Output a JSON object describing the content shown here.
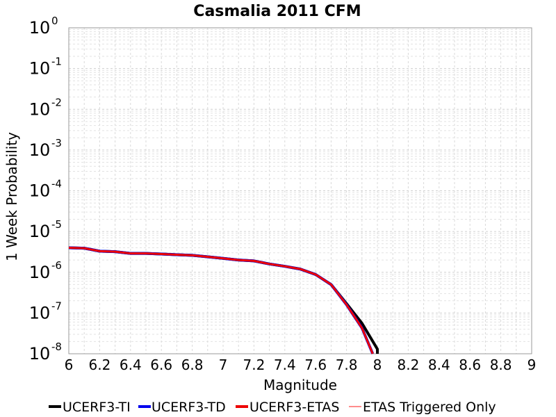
{
  "chart_data": {
    "type": "line",
    "title": "Casmalia 2011 CFM",
    "xlabel": "Magnitude",
    "ylabel": "1 Week Probability",
    "xlim": [
      6,
      9
    ],
    "ylim": [
      1e-08,
      1
    ],
    "yscale": "log",
    "grid": true,
    "legend_position": "bottom",
    "x_ticks": [
      "6",
      "6.2",
      "6.4",
      "6.6",
      "6.8",
      "7",
      "7.2",
      "7.4",
      "7.6",
      "7.8",
      "8",
      "8.2",
      "8.4",
      "8.6",
      "8.8",
      "9"
    ],
    "y_tick_base": "10",
    "y_tick_exponents": [
      "0",
      "-1",
      "-2",
      "-3",
      "-4",
      "-5",
      "-6",
      "-7",
      "-8"
    ],
    "series": [
      {
        "name": "UCERF3-TI",
        "color": "#000000",
        "x": [
          6.0,
          6.1,
          6.2,
          6.3,
          6.4,
          6.5,
          6.6,
          6.7,
          6.8,
          6.9,
          7.0,
          7.1,
          7.2,
          7.3,
          7.4,
          7.5,
          7.6,
          7.7,
          7.8,
          7.9,
          8.0,
          8.0
        ],
        "y": [
          4e-06,
          3.9e-06,
          3.3e-06,
          3.2e-06,
          2.9e-06,
          2.9e-06,
          2.8e-06,
          2.7e-06,
          2.6e-06,
          2.4e-06,
          2.2e-06,
          2e-06,
          1.9e-06,
          1.6e-06,
          1.4e-06,
          1.2e-06,
          8.8e-07,
          5e-07,
          1.7e-07,
          5.6e-08,
          1.3e-08,
          1e-08
        ]
      },
      {
        "name": "UCERF3-TD",
        "color": "#0000ee",
        "x": [
          6.0,
          6.1,
          6.2,
          6.3,
          6.4,
          6.5,
          6.6,
          6.7,
          6.8,
          6.9,
          7.0,
          7.1,
          7.2,
          7.3,
          7.4,
          7.5,
          7.6,
          7.7,
          7.8,
          7.9,
          7.97
        ],
        "y": [
          4e-06,
          3.9e-06,
          3.3e-06,
          3.2e-06,
          2.9e-06,
          2.9e-06,
          2.8e-06,
          2.7e-06,
          2.6e-06,
          2.4e-06,
          2.2e-06,
          2e-06,
          1.9e-06,
          1.6e-06,
          1.4e-06,
          1.2e-06,
          8.8e-07,
          5e-07,
          1.6e-07,
          4.3e-08,
          1e-08
        ]
      },
      {
        "name": "UCERF3-ETAS",
        "color": "#ee0000",
        "x": [
          6.0,
          6.1,
          6.2,
          6.3,
          6.4,
          6.5,
          6.6,
          6.7,
          6.8,
          6.9,
          7.0,
          7.1,
          7.2,
          7.3,
          7.4,
          7.5,
          7.6,
          7.7,
          7.8,
          7.9,
          7.97
        ],
        "y": [
          4e-06,
          3.9e-06,
          3.3e-06,
          3.2e-06,
          2.9e-06,
          2.9e-06,
          2.8e-06,
          2.7e-06,
          2.6e-06,
          2.4e-06,
          2.2e-06,
          2e-06,
          1.9e-06,
          1.6e-06,
          1.4e-06,
          1.2e-06,
          8.8e-07,
          5e-07,
          1.6e-07,
          4.3e-08,
          1e-08
        ]
      },
      {
        "name": "ETAS Triggered Only",
        "color": "#ff6666",
        "x": [],
        "y": []
      }
    ]
  }
}
